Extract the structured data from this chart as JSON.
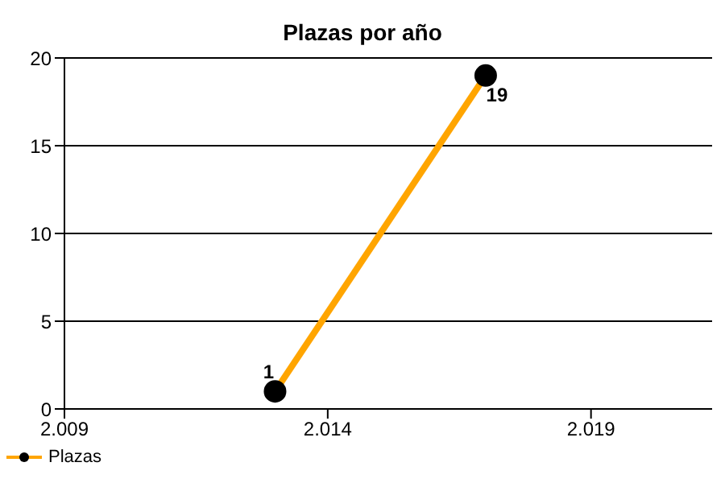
{
  "chart_data": {
    "type": "line",
    "title": "Plazas por año",
    "x": [
      2013,
      2017
    ],
    "series": [
      {
        "name": "Plazas",
        "color": "#ffa500",
        "values": [
          1,
          19
        ]
      }
    ],
    "xlim": [
      2009,
      2021.3
    ],
    "xticks": [
      {
        "value": 2009,
        "label": "2.009"
      },
      {
        "value": 2014,
        "label": "2.014"
      },
      {
        "value": 2019,
        "label": "2.019"
      }
    ],
    "ylim": [
      0,
      20
    ],
    "yticks": [
      0,
      5,
      10,
      15,
      20
    ],
    "grid": "y",
    "legend": "bottom left",
    "marker": "circle",
    "line_style": "solid",
    "data_labels": true
  }
}
